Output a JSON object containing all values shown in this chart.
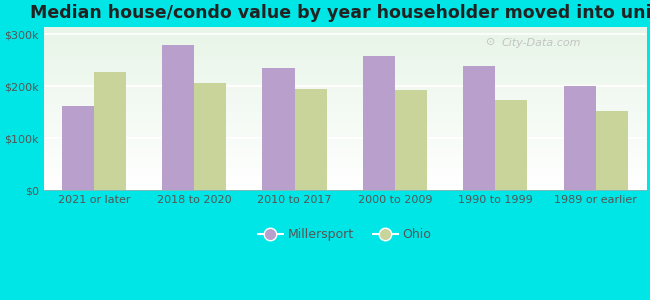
{
  "title": "Median house/condo value by year householder moved into unit",
  "categories": [
    "2021 or later",
    "2018 to 2020",
    "2010 to 2017",
    "2000 to 2009",
    "1990 to 1999",
    "1989 or earlier"
  ],
  "millersport_values": [
    163000,
    279000,
    236000,
    258000,
    240000,
    200000
  ],
  "ohio_values": [
    228000,
    207000,
    195000,
    193000,
    173000,
    152000
  ],
  "millersport_color": "#b89fcc",
  "ohio_color": "#c8d49a",
  "figure_bg": "#00e5e5",
  "plot_bg_top": "#e8f5e8",
  "plot_bg_bottom": "#f8fff8",
  "yticks": [
    0,
    100000,
    200000,
    300000
  ],
  "ylabels": [
    "$0",
    "$100k",
    "$200k",
    "$300k"
  ],
  "ylim": [
    0,
    315000
  ],
  "bar_width": 0.32,
  "legend_labels": [
    "Millersport",
    "Ohio"
  ],
  "title_fontsize": 12.5,
  "tick_fontsize": 8,
  "legend_fontsize": 9,
  "watermark": "City-Data.com"
}
